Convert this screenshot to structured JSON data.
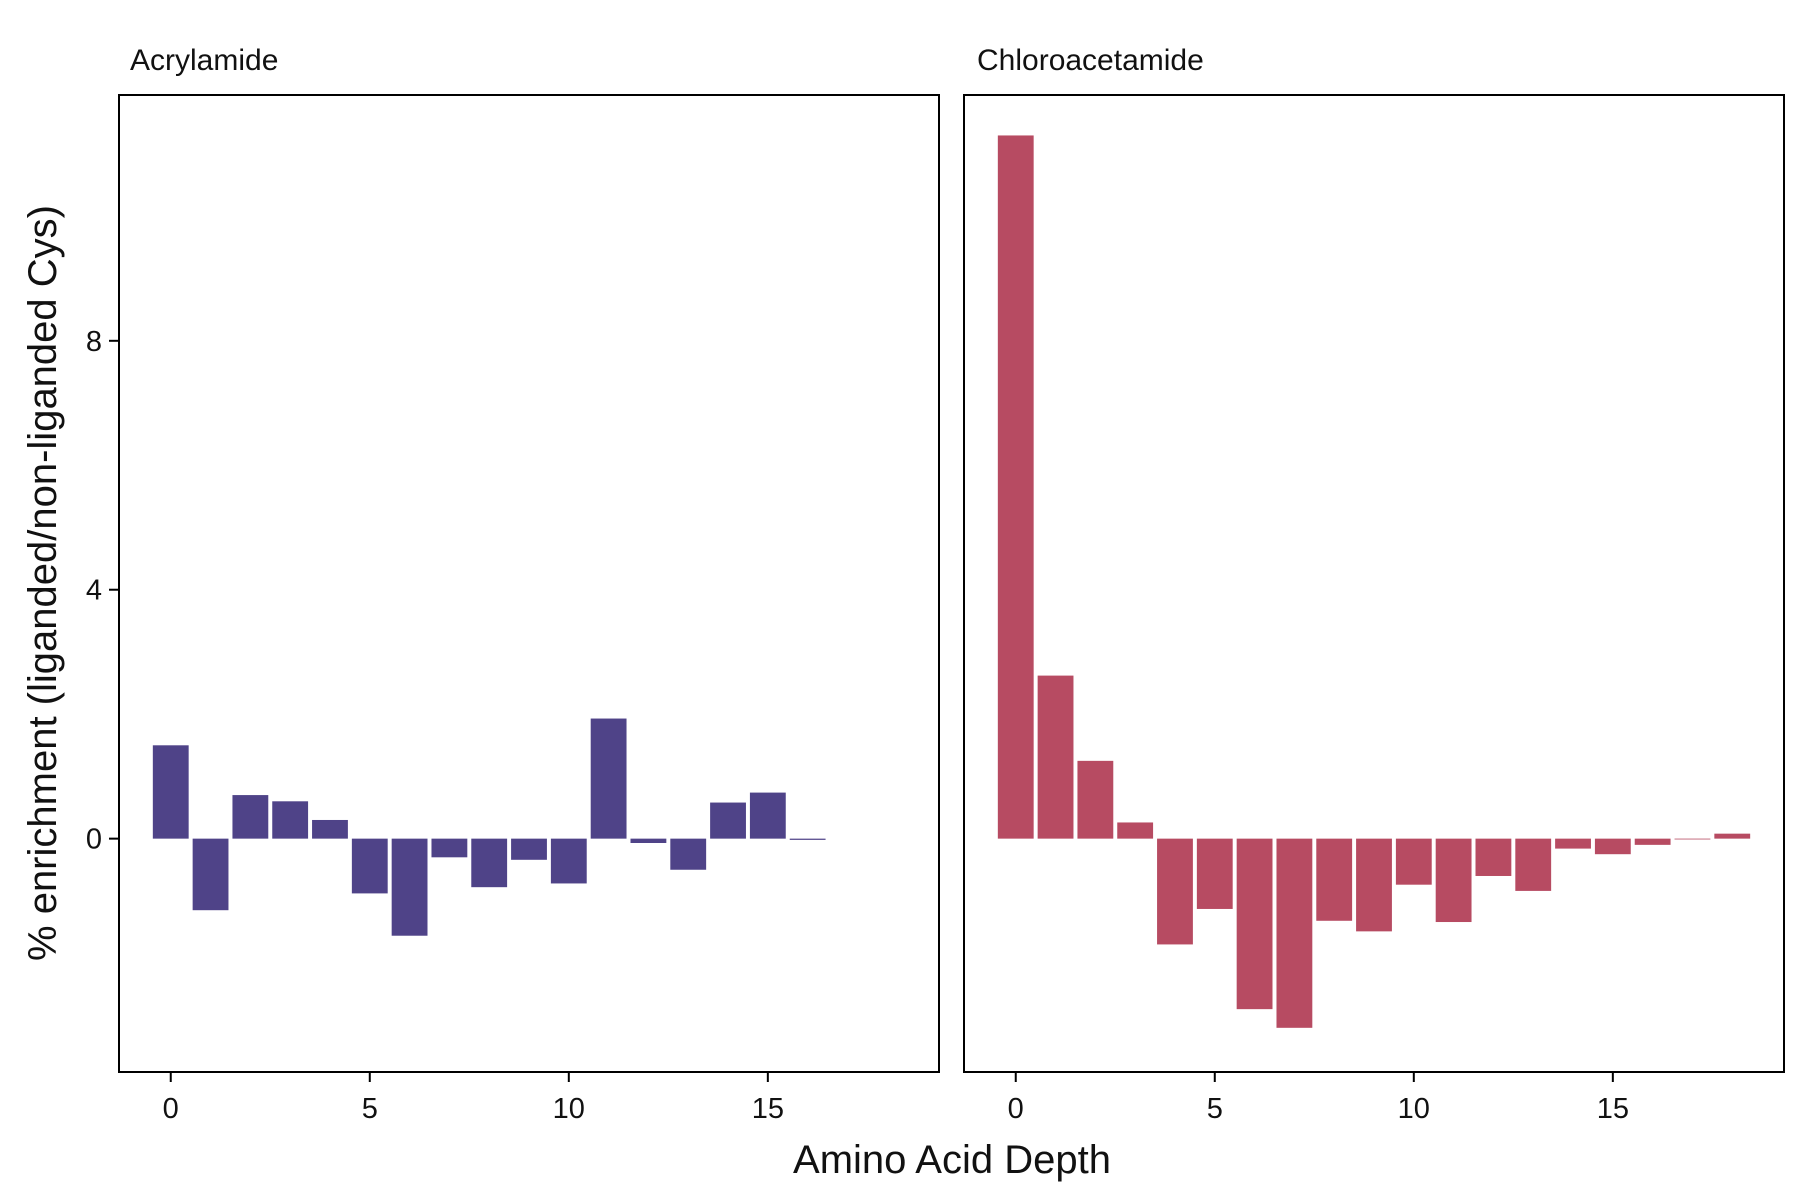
{
  "chart_data": {
    "type": "bar",
    "xlabel": "Amino Acid Depth",
    "ylabel": "% enrichment (liganded/non-liganded Cys)",
    "xlim": [
      -1.3,
      19.3
    ],
    "ylim": [
      -3.75,
      11.95
    ],
    "x_ticks": [
      0,
      5,
      10,
      15
    ],
    "y_ticks": [
      0,
      4,
      8
    ],
    "grid": false,
    "panels": [
      {
        "title": "Acrylamide",
        "color": "#4F4388",
        "x": [
          0,
          1,
          2,
          3,
          4,
          5,
          6,
          7,
          8,
          9,
          10,
          11,
          12,
          13,
          14,
          15,
          16
        ],
        "values": [
          1.5,
          -1.15,
          0.7,
          0.6,
          0.3,
          -0.88,
          -1.56,
          -0.3,
          -0.78,
          -0.34,
          -0.72,
          1.93,
          -0.07,
          -0.5,
          0.58,
          0.74,
          -0.02
        ]
      },
      {
        "title": "Chloroacetamide",
        "color": "#B74B62",
        "x": [
          0,
          1,
          2,
          3,
          4,
          5,
          6,
          7,
          8,
          9,
          10,
          11,
          12,
          13,
          14,
          15,
          16,
          17,
          18
        ],
        "values": [
          11.3,
          2.62,
          1.25,
          0.26,
          -1.7,
          -1.13,
          -2.74,
          -3.04,
          -1.32,
          -1.49,
          -0.74,
          -1.34,
          -0.6,
          -0.84,
          -0.16,
          -0.25,
          -0.1,
          0.0,
          0.08
        ]
      }
    ]
  }
}
